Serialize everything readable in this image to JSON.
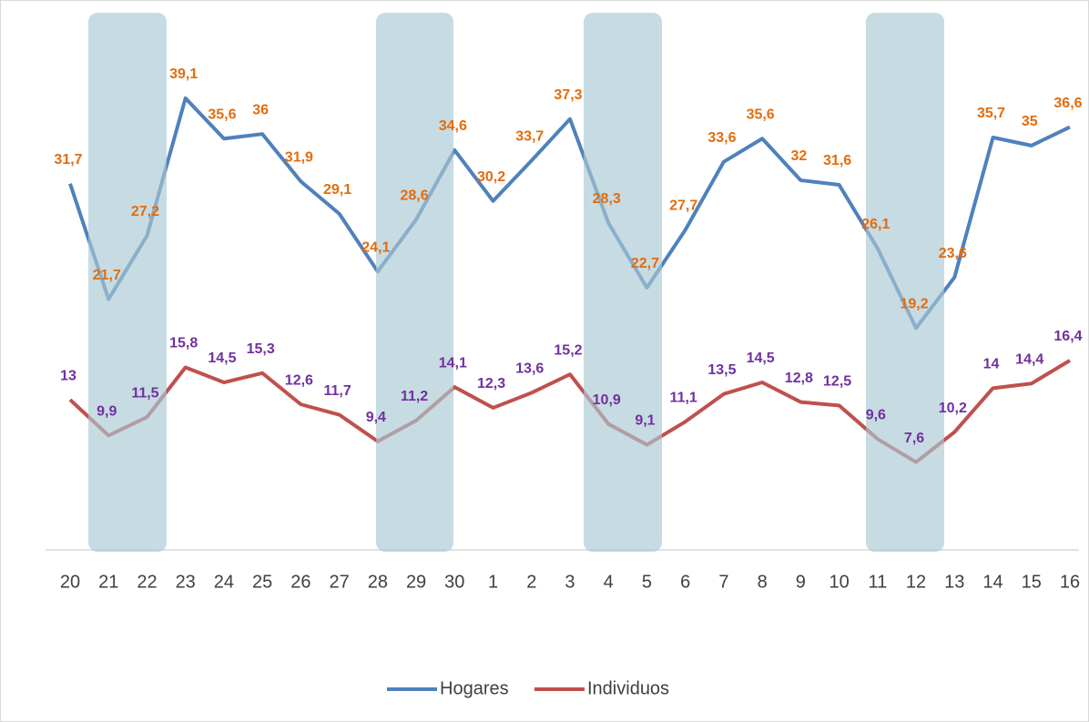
{
  "chart_data": {
    "type": "line",
    "categories": [
      "20",
      "21",
      "22",
      "23",
      "24",
      "25",
      "26",
      "27",
      "28",
      "29",
      "30",
      "1",
      "2",
      "3",
      "4",
      "5",
      "6",
      "7",
      "8",
      "9",
      "10",
      "11",
      "12",
      "13",
      "14",
      "15",
      "16"
    ],
    "ylim": [
      0,
      45
    ],
    "series": [
      {
        "name": "Hogares",
        "color": "#4f81bd",
        "label_color": "#e46c0a",
        "values": [
          31.7,
          21.7,
          27.2,
          39.1,
          35.6,
          36,
          31.9,
          29.1,
          24.1,
          28.6,
          34.6,
          30.2,
          33.7,
          37.3,
          28.3,
          22.7,
          27.7,
          33.6,
          35.6,
          32,
          31.6,
          26.1,
          19.2,
          23.6,
          35.7,
          35,
          36.6
        ],
        "value_labels": [
          "31,7",
          "21,7",
          "27,2",
          "39,1",
          "35,6",
          "36",
          "31,9",
          "29,1",
          "24,1",
          "28,6",
          "34,6",
          "30,2",
          "33,7",
          "37,3",
          "28,3",
          "22,7",
          "27,7",
          "33,6",
          "35,6",
          "32",
          "31,6",
          "26,1",
          "19,2",
          "23,6",
          "35,7",
          "35",
          "36,6"
        ]
      },
      {
        "name": "Individuos",
        "color": "#c0504d",
        "label_color": "#7030a0",
        "values": [
          13,
          9.9,
          11.5,
          15.8,
          14.5,
          15.3,
          12.6,
          11.7,
          9.4,
          11.2,
          14.1,
          12.3,
          13.6,
          15.2,
          10.9,
          9.1,
          11.1,
          13.5,
          14.5,
          12.8,
          12.5,
          9.6,
          7.6,
          10.2,
          14,
          14.4,
          16.4
        ],
        "value_labels": [
          "13",
          "9,9",
          "11,5",
          "15,8",
          "14,5",
          "15,3",
          "12,6",
          "11,7",
          "9,4",
          "11,2",
          "14,1",
          "12,3",
          "13,6",
          "15,2",
          "10,9",
          "9,1",
          "11,1",
          "13,5",
          "14,5",
          "12,8",
          "12,5",
          "9,6",
          "7,6",
          "10,2",
          "14",
          "14,4",
          "16,4"
        ]
      }
    ]
  }
}
